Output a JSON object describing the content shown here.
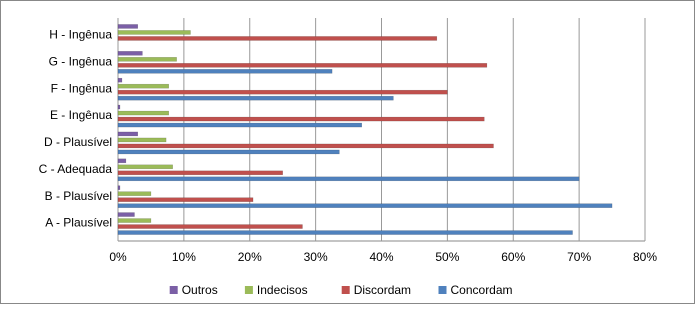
{
  "chart_data": {
    "type": "bar",
    "orientation": "horizontal",
    "categories": [
      "A - Plausível",
      "B - Plausível",
      "C - Adequada",
      "D - Plausível",
      "E - Ingênua",
      "F - Ingênua",
      "G - Ingênua",
      "H - Ingênua"
    ],
    "series": [
      {
        "name": "Outros",
        "color": "#7b5fa6",
        "values": [
          2.5,
          0.3,
          1.2,
          3,
          0.3,
          0.6,
          3.7,
          3
        ]
      },
      {
        "name": "Indecisos",
        "color": "#9bbb59",
        "values": [
          5,
          5,
          8.3,
          7.3,
          7.7,
          7.7,
          8.9,
          11
        ]
      },
      {
        "name": "Discordam",
        "color": "#c0504d",
        "values": [
          28,
          20.5,
          25,
          57,
          55.6,
          50,
          56,
          48.4
        ]
      },
      {
        "name": "Concordam",
        "color": "#4f81bd",
        "values": [
          69,
          75,
          70,
          33.6,
          37,
          41.8,
          32.5,
          0
        ]
      }
    ],
    "xlim": [
      0,
      80
    ],
    "xticks": [
      {
        "value": 0,
        "label": "0%"
      },
      {
        "value": 10,
        "label": "10%"
      },
      {
        "value": 20,
        "label": "20%"
      },
      {
        "value": 30,
        "label": "30%"
      },
      {
        "value": 40,
        "label": "40%"
      },
      {
        "value": 50,
        "label": "50%"
      },
      {
        "value": 60,
        "label": "60%"
      },
      {
        "value": 70,
        "label": "70%"
      },
      {
        "value": 80,
        "label": "80%"
      }
    ],
    "grid": true,
    "legend": "bottom"
  }
}
